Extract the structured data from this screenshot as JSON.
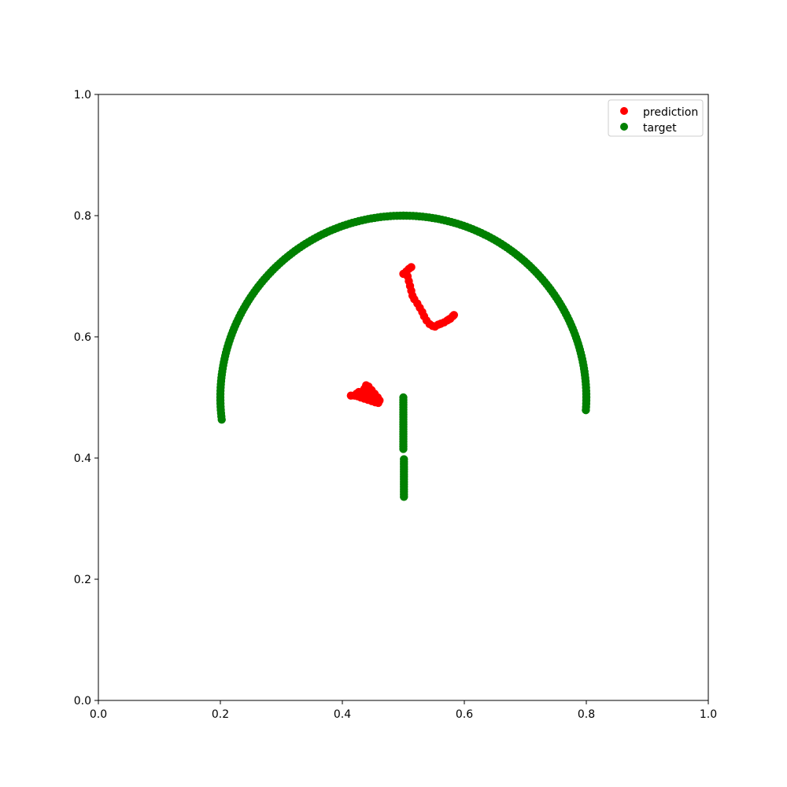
{
  "chart_data": {
    "type": "scatter",
    "xlim": [
      0.0,
      1.0
    ],
    "ylim": [
      0.0,
      1.0
    ],
    "x_ticks": [
      "0.0",
      "0.2",
      "0.4",
      "0.6",
      "0.8",
      "1.0"
    ],
    "y_ticks": [
      "0.0",
      "0.2",
      "0.4",
      "0.6",
      "0.8",
      "1.0"
    ],
    "grid": false,
    "legend_position": "top-right",
    "series": [
      {
        "name": "prediction",
        "color": "#ff0000",
        "points": [
          [
            0.509,
            0.712
          ],
          [
            0.513,
            0.715
          ],
          [
            0.505,
            0.708
          ],
          [
            0.5,
            0.704
          ],
          [
            0.507,
            0.7
          ],
          [
            0.509,
            0.692
          ],
          [
            0.511,
            0.684
          ],
          [
            0.513,
            0.676
          ],
          [
            0.515,
            0.668
          ],
          [
            0.518,
            0.662
          ],
          [
            0.523,
            0.655
          ],
          [
            0.527,
            0.648
          ],
          [
            0.531,
            0.641
          ],
          [
            0.534,
            0.634
          ],
          [
            0.538,
            0.627
          ],
          [
            0.543,
            0.621
          ],
          [
            0.548,
            0.618
          ],
          [
            0.552,
            0.617
          ],
          [
            0.557,
            0.62
          ],
          [
            0.562,
            0.622
          ],
          [
            0.567,
            0.624
          ],
          [
            0.572,
            0.627
          ],
          [
            0.577,
            0.63
          ],
          [
            0.581,
            0.634
          ],
          [
            0.583,
            0.636
          ],
          [
            0.575,
            0.629
          ],
          [
            0.56,
            0.621
          ],
          [
            0.414,
            0.503
          ],
          [
            0.42,
            0.503
          ],
          [
            0.425,
            0.502
          ],
          [
            0.43,
            0.5
          ],
          [
            0.436,
            0.498
          ],
          [
            0.442,
            0.496
          ],
          [
            0.448,
            0.494
          ],
          [
            0.454,
            0.492
          ],
          [
            0.459,
            0.491
          ],
          [
            0.461,
            0.495
          ],
          [
            0.458,
            0.5
          ],
          [
            0.453,
            0.506
          ],
          [
            0.448,
            0.512
          ],
          [
            0.443,
            0.518
          ],
          [
            0.439,
            0.52
          ],
          [
            0.436,
            0.514
          ],
          [
            0.433,
            0.508
          ],
          [
            0.427,
            0.509
          ],
          [
            0.423,
            0.506
          ],
          [
            0.445,
            0.5
          ],
          [
            0.452,
            0.497
          ],
          [
            0.44,
            0.505
          ]
        ]
      },
      {
        "name": "target",
        "color": "#008000",
        "arc": {
          "center": [
            0.5,
            0.5
          ],
          "radius": 0.3,
          "theta_start_deg": 187,
          "theta_end_deg": -4,
          "count": 190
        },
        "segments": [
          {
            "x": 0.5,
            "y_start": 0.5,
            "y_end": 0.415,
            "count": 22
          },
          {
            "x": 0.501,
            "y_start": 0.398,
            "y_end": 0.336,
            "count": 16
          }
        ]
      }
    ]
  }
}
